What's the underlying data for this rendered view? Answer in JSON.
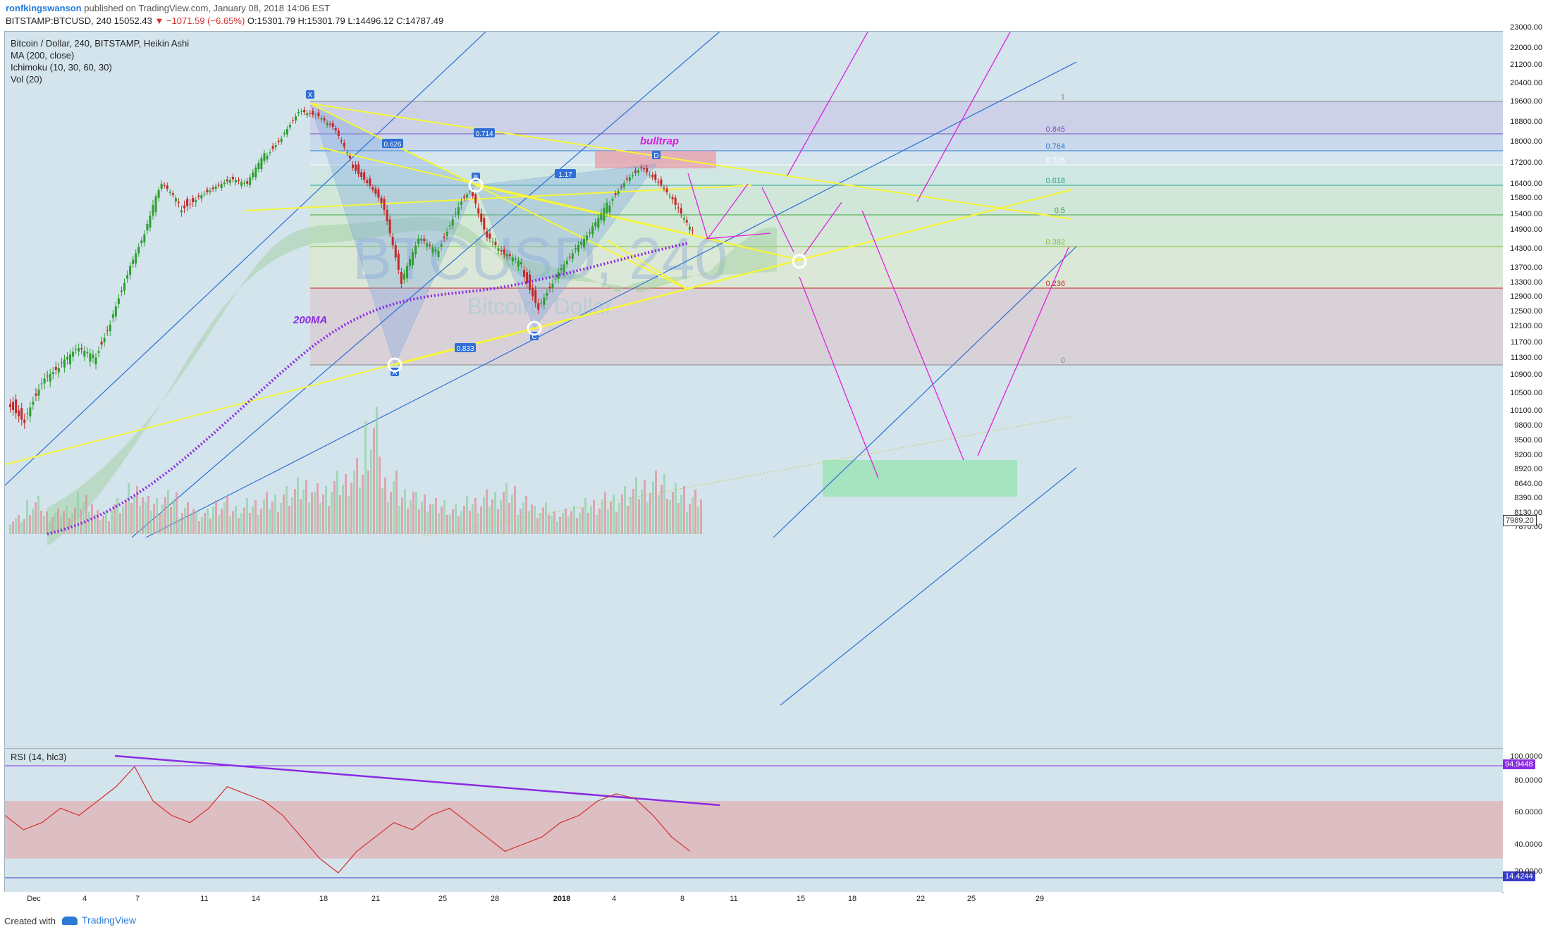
{
  "header": {
    "author": "ronfkingswanson",
    "published": " published on TradingView.com, January 08, 2018 14:06 EST",
    "symbol": "BITSTAMP:BTCUSD, 240",
    "last": "15052.43",
    "change": "▼ −1071.59 (−6.65%)",
    "ohlc": "O:15301.79 H:15301.79 L:14496.12 C:14787.49"
  },
  "legend": {
    "title": "Bitcoin / Dollar, 240, BITSTAMP, Heikin Ashi",
    "ma": "MA (200, close)",
    "ichimoku": "Ichimoku (10, 30, 60, 30)",
    "vol": "Vol (20)"
  },
  "watermark": {
    "symbol": "BTCUSD, 240",
    "name": "Bitcoin / Dollar"
  },
  "annotations": {
    "bulltrap": "bulltrap",
    "ma200": "200MA",
    "points": [
      "X",
      "A",
      "B",
      "C",
      "D"
    ],
    "ratios": [
      "0.626",
      "0.714",
      "1.17",
      "0.833"
    ]
  },
  "rsi": {
    "label": "RSI (14, hlc3)",
    "top_value": "94.9448",
    "bottom_value": "14.4244",
    "ticks": [
      "100.0000",
      "80.0000",
      "60.0000",
      "40.0000",
      "20.0000"
    ]
  },
  "footer": {
    "created": "Created with",
    "brand": "TradingView"
  },
  "colors": {
    "up": "#2e9e2e",
    "down": "#c62828",
    "bg": "#d3e4ec",
    "yellow": "#f5f53a",
    "blue": "#2f6fd6",
    "magenta": "#e020e0",
    "purple": "#8a2be2"
  },
  "chart_data": {
    "type": "candlestick",
    "style": "Heikin Ashi",
    "title": "Bitcoin / Dollar, 240, BITSTAMP, Heikin Ashi",
    "y_ticks": [
      "23000.00",
      "22000.00",
      "21200.00",
      "20400.00",
      "19600.00",
      "18800.00",
      "18000.00",
      "17200.00",
      "16400.00",
      "15800.00",
      "15400.00",
      "14900.00",
      "14300.00",
      "13700.00",
      "13300.00",
      "12900.00",
      "12500.00",
      "12100.00",
      "11700.00",
      "11300.00",
      "10900.00",
      "10500.00",
      "10100.00",
      "9800.00",
      "9500.00",
      "9200.00",
      "8920.00",
      "8640.00",
      "8390.00",
      "8130.00",
      "7870.00"
    ],
    "price_marker": "7989.20",
    "x_ticks": [
      "Dec",
      "4",
      "7",
      "11",
      "14",
      "18",
      "21",
      "25",
      "28",
      "2018",
      "4",
      "8",
      "11",
      "15",
      "18",
      "22",
      "25",
      "29"
    ],
    "fib_levels": [
      {
        "label": "1",
        "color": "#888888"
      },
      {
        "label": "0.845",
        "color": "#7b4fc0"
      },
      {
        "label": "0.764",
        "color": "#2a7bd6"
      },
      {
        "label": "0.705",
        "color": "#ffffff"
      },
      {
        "label": "0.618",
        "color": "#1fa88a"
      },
      {
        "label": "0.5",
        "color": "#3aa43a"
      },
      {
        "label": "0.382",
        "color": "#7cbf2a"
      },
      {
        "label": "0.236",
        "color": "#c62828"
      },
      {
        "label": "0",
        "color": "#888888"
      }
    ],
    "path_close": [
      10400,
      10000,
      10800,
      11100,
      11500,
      11300,
      12300,
      13600,
      14800,
      16400,
      15600,
      15900,
      16300,
      16600,
      16400,
      17500,
      18300,
      19300,
      19100,
      18600,
      17300,
      16600,
      15600,
      13300,
      14600,
      14200,
      15400,
      16200,
      14700,
      14100,
      13800,
      12700,
      13500,
      14200,
      14800,
      15600,
      16600,
      17100,
      16500,
      15600,
      14787
    ],
    "volume": [
      0.15,
      0.3,
      0.2,
      0.25,
      0.35,
      0.2,
      0.3,
      0.4,
      0.3,
      0.35,
      0.25,
      0.2,
      0.3,
      0.25,
      0.3,
      0.35,
      0.4,
      0.45,
      0.4,
      0.5,
      0.6,
      1.0,
      0.5,
      0.4,
      0.35,
      0.3,
      0.25,
      0.3,
      0.35,
      0.4,
      0.3,
      0.25,
      0.2,
      0.25,
      0.3,
      0.35,
      0.4,
      0.45,
      0.5,
      0.4,
      0.35
    ],
    "rsi": [
      60,
      50,
      55,
      65,
      60,
      70,
      80,
      94,
      70,
      60,
      55,
      65,
      80,
      75,
      70,
      60,
      45,
      30,
      20,
      35,
      45,
      55,
      50,
      60,
      65,
      55,
      45,
      35,
      40,
      45,
      55,
      60,
      70,
      75,
      72,
      60,
      45,
      35
    ]
  }
}
